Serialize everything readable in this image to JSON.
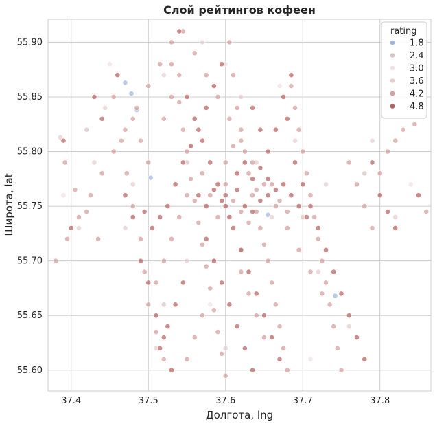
{
  "chart_data": {
    "type": "scatter",
    "title": "Слой рейтингов кофеен",
    "xlabel": "Долгота, lng",
    "ylabel": "Широта, lat",
    "xlim": [
      37.37,
      37.866
    ],
    "ylim": [
      55.581,
      55.921
    ],
    "xticks": [
      37.4,
      37.5,
      37.6,
      37.7,
      37.8
    ],
    "yticks": [
      55.6,
      55.65,
      55.7,
      55.75,
      55.8,
      55.85,
      55.9
    ],
    "x_tick_labels": [
      "37.4",
      "37.5",
      "37.6",
      "37.7",
      "37.8"
    ],
    "y_tick_labels": [
      "55.60",
      "55.65",
      "55.70",
      "55.75",
      "55.80",
      "55.85",
      "55.90"
    ],
    "grid": true,
    "legend": {
      "title": "rating",
      "placement": "top-right",
      "entries": [
        {
          "label": "1.8",
          "color": "#9fb7dc"
        },
        {
          "label": "2.4",
          "color": "#d8c4c4"
        },
        {
          "label": "3.0",
          "color": "#efe1e1"
        },
        {
          "label": "3.6",
          "color": "#e8cccc"
        },
        {
          "label": "4.2",
          "color": "#d49c9c"
        },
        {
          "label": "4.8",
          "color": "#b9605e"
        }
      ]
    },
    "series": [
      {
        "legend_index": 0,
        "points": [
          [
            37.47,
            55.863
          ],
          [
            37.478,
            55.853
          ],
          [
            37.485,
            55.838
          ],
          [
            37.503,
            55.776
          ],
          [
            37.742,
            55.668
          ],
          [
            37.655,
            55.742
          ]
        ]
      },
      {
        "legend_index": 1,
        "points": [
          [
            37.42,
            55.82
          ],
          [
            37.55,
            55.79
          ],
          [
            37.62,
            55.71
          ],
          [
            37.7,
            55.74
          ],
          [
            37.52,
            55.66
          ],
          [
            37.78,
            55.78
          ]
        ]
      },
      {
        "legend_index": 2,
        "points": [
          [
            37.45,
            55.88
          ],
          [
            37.6,
            55.88
          ],
          [
            37.71,
            55.61
          ],
          [
            37.39,
            55.76
          ],
          [
            37.84,
            55.77
          ],
          [
            37.58,
            55.66
          ],
          [
            37.67,
            55.86
          ]
        ]
      },
      {
        "legend_index": 3,
        "points": [
          [
            37.386,
            55.813
          ],
          [
            37.41,
            55.73
          ],
          [
            37.444,
            55.84
          ],
          [
            37.48,
            55.77
          ],
          [
            37.52,
            55.87
          ],
          [
            37.57,
            55.9
          ],
          [
            37.62,
            55.85
          ],
          [
            37.66,
            55.74
          ],
          [
            37.72,
            55.69
          ],
          [
            37.76,
            55.64
          ],
          [
            37.79,
            55.81
          ],
          [
            37.82,
            55.74
          ],
          [
            37.51,
            55.62
          ],
          [
            37.6,
            55.62
          ],
          [
            37.55,
            55.7
          ],
          [
            37.64,
            55.79
          ],
          [
            37.69,
            55.81
          ],
          [
            37.73,
            55.77
          ],
          [
            37.47,
            55.73
          ],
          [
            37.43,
            55.79
          ]
        ]
      },
      {
        "legend_index": 4,
        "points": [
          [
            37.392,
            55.79
          ],
          [
            37.405,
            55.765
          ],
          [
            37.42,
            55.745
          ],
          [
            37.435,
            55.72
          ],
          [
            37.455,
            55.85
          ],
          [
            37.465,
            55.81
          ],
          [
            37.472,
            55.78
          ],
          [
            37.48,
            55.75
          ],
          [
            37.49,
            55.72
          ],
          [
            37.495,
            55.69
          ],
          [
            37.5,
            55.66
          ],
          [
            37.51,
            55.635
          ],
          [
            37.52,
            55.61
          ],
          [
            37.53,
            55.88
          ],
          [
            37.54,
            55.845
          ],
          [
            37.545,
            55.82
          ],
          [
            37.55,
            55.8
          ],
          [
            37.555,
            55.775
          ],
          [
            37.56,
            55.755
          ],
          [
            37.565,
            55.735
          ],
          [
            37.57,
            55.715
          ],
          [
            37.575,
            55.695
          ],
          [
            37.58,
            55.675
          ],
          [
            37.585,
            55.655
          ],
          [
            37.59,
            55.635
          ],
          [
            37.595,
            55.615
          ],
          [
            37.6,
            55.595
          ],
          [
            37.605,
            55.9
          ],
          [
            37.61,
            55.87
          ],
          [
            37.615,
            55.84
          ],
          [
            37.62,
            55.82
          ],
          [
            37.625,
            55.8
          ],
          [
            37.63,
            55.78
          ],
          [
            37.635,
            55.76
          ],
          [
            37.64,
            55.745
          ],
          [
            37.645,
            55.73
          ],
          [
            37.65,
            55.715
          ],
          [
            37.655,
            55.7
          ],
          [
            37.66,
            55.68
          ],
          [
            37.665,
            55.66
          ],
          [
            37.67,
            55.64
          ],
          [
            37.675,
            55.62
          ],
          [
            37.68,
            55.6
          ],
          [
            37.685,
            55.86
          ],
          [
            37.69,
            55.84
          ],
          [
            37.695,
            55.82
          ],
          [
            37.7,
            55.8
          ],
          [
            37.705,
            55.78
          ],
          [
            37.71,
            55.76
          ],
          [
            37.715,
            55.74
          ],
          [
            37.72,
            55.72
          ],
          [
            37.725,
            55.7
          ],
          [
            37.73,
            55.68
          ],
          [
            37.735,
            55.66
          ],
          [
            37.74,
            55.64
          ],
          [
            37.745,
            55.62
          ],
          [
            37.75,
            55.6
          ],
          [
            37.76,
            55.79
          ],
          [
            37.77,
            55.77
          ],
          [
            37.78,
            55.75
          ],
          [
            37.79,
            55.73
          ],
          [
            37.8,
            55.78
          ],
          [
            37.81,
            55.8
          ],
          [
            37.82,
            55.81
          ],
          [
            37.83,
            55.82
          ],
          [
            37.845,
            55.825
          ],
          [
            37.86,
            55.745
          ],
          [
            37.38,
            55.7
          ],
          [
            37.395,
            55.72
          ],
          [
            37.41,
            55.74
          ],
          [
            37.425,
            55.76
          ],
          [
            37.44,
            55.78
          ],
          [
            37.455,
            55.8
          ],
          [
            37.47,
            55.82
          ],
          [
            37.485,
            55.84
          ],
          [
            37.5,
            55.86
          ],
          [
            37.515,
            55.88
          ],
          [
            37.53,
            55.9
          ],
          [
            37.545,
            55.91
          ],
          [
            37.56,
            55.89
          ],
          [
            37.575,
            55.87
          ],
          [
            37.59,
            55.85
          ],
          [
            37.605,
            55.83
          ],
          [
            37.62,
            55.81
          ],
          [
            37.635,
            55.79
          ],
          [
            37.65,
            55.77
          ],
          [
            37.665,
            55.75
          ],
          [
            37.68,
            55.73
          ],
          [
            37.695,
            55.71
          ],
          [
            37.71,
            55.69
          ],
          [
            37.725,
            55.67
          ],
          [
            37.6,
            55.77
          ],
          [
            37.61,
            55.755
          ],
          [
            37.62,
            55.745
          ],
          [
            37.63,
            55.735
          ],
          [
            37.64,
            55.765
          ],
          [
            37.59,
            55.74
          ],
          [
            37.58,
            55.76
          ],
          [
            37.57,
            55.78
          ],
          [
            37.66,
            55.77
          ],
          [
            37.67,
            55.755
          ],
          [
            37.68,
            55.745
          ],
          [
            37.6,
            55.79
          ],
          [
            37.61,
            55.805
          ],
          [
            37.55,
            55.76
          ],
          [
            37.54,
            55.74
          ],
          [
            37.53,
            55.72
          ],
          [
            37.52,
            55.7
          ],
          [
            37.51,
            55.68
          ],
          [
            37.62,
            55.69
          ],
          [
            37.63,
            55.67
          ],
          [
            37.64,
            55.65
          ],
          [
            37.65,
            55.63
          ],
          [
            37.57,
            55.65
          ],
          [
            37.56,
            55.63
          ],
          [
            37.55,
            55.61
          ],
          [
            37.5,
            55.79
          ],
          [
            37.49,
            55.81
          ],
          [
            37.48,
            55.83
          ],
          [
            37.52,
            55.83
          ],
          [
            37.53,
            55.85
          ],
          [
            37.54,
            55.87
          ]
        ]
      },
      {
        "legend_index": 5,
        "points": [
          [
            37.39,
            55.81
          ],
          [
            37.4,
            55.73
          ],
          [
            37.43,
            55.85
          ],
          [
            37.44,
            55.83
          ],
          [
            37.46,
            55.87
          ],
          [
            37.47,
            55.76
          ],
          [
            37.48,
            55.74
          ],
          [
            37.49,
            55.7
          ],
          [
            37.5,
            55.68
          ],
          [
            37.51,
            55.65
          ],
          [
            37.52,
            55.63
          ],
          [
            37.53,
            55.6
          ],
          [
            37.54,
            55.91
          ],
          [
            37.55,
            55.85
          ],
          [
            37.56,
            55.83
          ],
          [
            37.57,
            55.81
          ],
          [
            37.58,
            55.79
          ],
          [
            37.59,
            55.77
          ],
          [
            37.6,
            55.75
          ],
          [
            37.61,
            55.73
          ],
          [
            37.62,
            55.71
          ],
          [
            37.63,
            55.69
          ],
          [
            37.64,
            55.67
          ],
          [
            37.65,
            55.65
          ],
          [
            37.66,
            55.63
          ],
          [
            37.67,
            55.61
          ],
          [
            37.68,
            55.83
          ],
          [
            37.69,
            55.79
          ],
          [
            37.7,
            55.77
          ],
          [
            37.71,
            55.75
          ],
          [
            37.72,
            55.73
          ],
          [
            37.73,
            55.71
          ],
          [
            37.74,
            55.69
          ],
          [
            37.75,
            55.67
          ],
          [
            37.76,
            55.65
          ],
          [
            37.77,
            55.63
          ],
          [
            37.78,
            55.61
          ],
          [
            37.79,
            55.79
          ],
          [
            37.8,
            55.76
          ],
          [
            37.81,
            55.745
          ],
          [
            37.82,
            55.73
          ],
          [
            37.85,
            55.76
          ],
          [
            37.6,
            55.76
          ],
          [
            37.615,
            55.765
          ],
          [
            37.625,
            55.75
          ],
          [
            37.635,
            55.745
          ],
          [
            37.645,
            55.755
          ],
          [
            37.655,
            55.76
          ],
          [
            37.605,
            55.74
          ],
          [
            37.595,
            55.755
          ],
          [
            37.585,
            55.765
          ],
          [
            37.575,
            55.75
          ],
          [
            37.565,
            55.76
          ],
          [
            37.615,
            55.78
          ],
          [
            37.625,
            55.79
          ],
          [
            37.635,
            55.775
          ],
          [
            37.645,
            55.785
          ],
          [
            37.655,
            55.775
          ],
          [
            37.665,
            55.765
          ],
          [
            37.675,
            55.77
          ],
          [
            37.685,
            55.76
          ],
          [
            37.695,
            55.75
          ],
          [
            37.705,
            55.74
          ],
          [
            37.535,
            55.77
          ],
          [
            37.525,
            55.75
          ],
          [
            37.515,
            55.74
          ],
          [
            37.505,
            55.73
          ],
          [
            37.495,
            55.745
          ],
          [
            37.545,
            55.79
          ],
          [
            37.555,
            55.805
          ],
          [
            37.565,
            55.82
          ],
          [
            37.575,
            55.84
          ],
          [
            37.585,
            55.86
          ],
          [
            37.595,
            55.88
          ],
          [
            37.635,
            55.84
          ],
          [
            37.645,
            55.82
          ],
          [
            37.655,
            55.8
          ],
          [
            37.665,
            55.82
          ],
          [
            37.675,
            55.85
          ],
          [
            37.685,
            55.87
          ],
          [
            37.575,
            55.72
          ],
          [
            37.585,
            55.7
          ],
          [
            37.595,
            55.68
          ],
          [
            37.605,
            55.66
          ],
          [
            37.615,
            55.64
          ],
          [
            37.625,
            55.62
          ],
          [
            37.635,
            55.6
          ],
          [
            37.545,
            55.68
          ],
          [
            37.535,
            55.66
          ],
          [
            37.525,
            55.64
          ],
          [
            37.515,
            55.62
          ]
        ]
      }
    ]
  }
}
